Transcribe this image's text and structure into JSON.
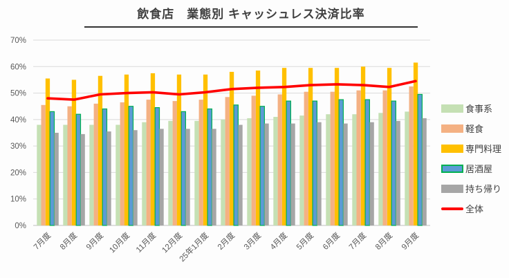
{
  "title": "飲食店　業態別 キャッシュレス決済比率",
  "colors": {
    "title_text": "#404040",
    "title_rule": "#333333",
    "grid": "#d9d9d9",
    "baseline": "#bfbfbf",
    "axis_text": "#595959",
    "legend_text": "#404040",
    "background": "#fdfdfd"
  },
  "chart_data": {
    "type": "bar",
    "subtype": "grouped-bars-with-line-overlay",
    "title": "飲食店　業態別 キャッシュレス決済比率",
    "xlabel": "",
    "ylabel": "",
    "ylim": [
      0,
      70
    ],
    "ytick_step": 10,
    "ytick_labels": [
      "0%",
      "10%",
      "20%",
      "30%",
      "40%",
      "50%",
      "60%",
      "70%"
    ],
    "grid": true,
    "legend_position": "right",
    "categories": [
      "7月度",
      "8月度",
      "9月度",
      "10月度",
      "11月度",
      "12月度",
      "25年1月度",
      "2月度",
      "3月度",
      "4月度",
      "5月度",
      "6月度",
      "7月度",
      "8月度",
      "9月度"
    ],
    "series": [
      {
        "name": "食事系",
        "type": "bar",
        "color": "#c5e0b4",
        "values": [
          38,
          38,
          38,
          38,
          39,
          39.5,
          39.5,
          40,
          40.5,
          41,
          41.5,
          42,
          42,
          42.5,
          43
        ]
      },
      {
        "name": "軽食",
        "type": "bar",
        "color": "#f4b183",
        "values": [
          45.5,
          45,
          46,
          46.5,
          47.5,
          47,
          47.5,
          48.5,
          49,
          49.5,
          50.5,
          50.5,
          51,
          51,
          52.5
        ]
      },
      {
        "name": "専門料理",
        "type": "bar",
        "color": "#ffc000",
        "values": [
          55.5,
          55,
          56.5,
          57,
          57.5,
          57,
          57,
          58,
          58.5,
          59.5,
          59.5,
          59.5,
          60,
          59.5,
          61.5
        ]
      },
      {
        "name": "居酒屋",
        "type": "bar",
        "color": "#5b9bd5",
        "border_color": "#00b050",
        "values": [
          43,
          42,
          44,
          45,
          44.5,
          43,
          44,
          45.5,
          45,
          47,
          47,
          47.5,
          47.5,
          47,
          49.5
        ]
      },
      {
        "name": "持ち帰り",
        "type": "bar",
        "color": "#a6a6a6",
        "values": [
          35,
          34.5,
          35.5,
          36,
          36.5,
          36.5,
          36.5,
          38,
          38.5,
          38.5,
          39,
          38.5,
          39,
          39.5,
          40.5
        ]
      },
      {
        "name": "全体",
        "type": "line",
        "color": "#ff0000",
        "values": [
          48,
          47.5,
          49.5,
          50,
          50.3,
          49.5,
          50.3,
          51.5,
          52,
          52.3,
          53,
          53.3,
          53,
          52.3,
          54.5
        ]
      }
    ]
  }
}
